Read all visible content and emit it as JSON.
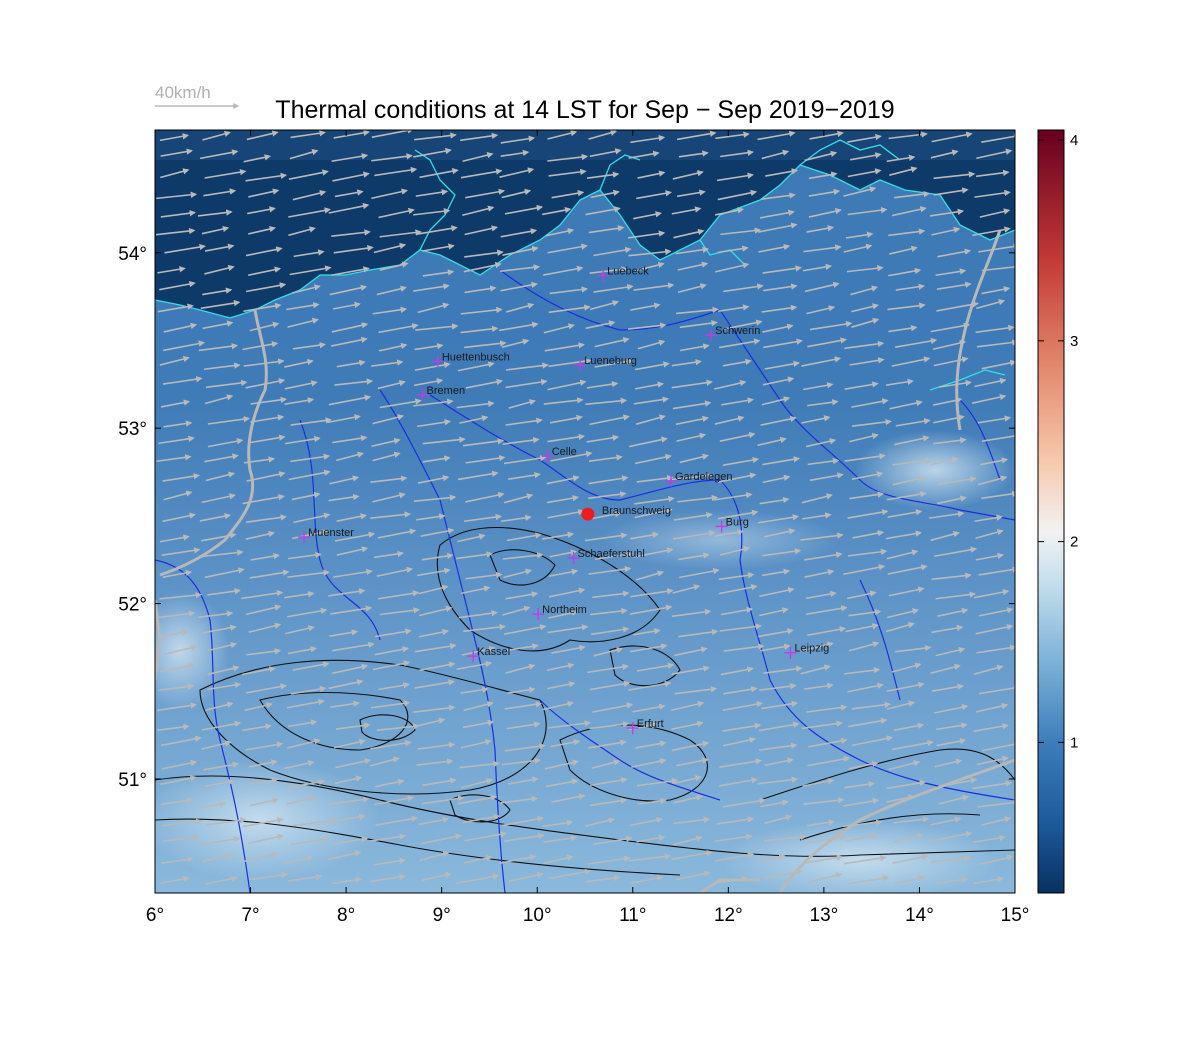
{
  "title": "Thermal conditions at 14 LST for Sep − Sep  2019−2019",
  "wind_legend": {
    "label": "40km/h",
    "color": "#b0b0b0"
  },
  "map": {
    "lon_range": [
      6,
      15
    ],
    "lat_range": [
      50.35,
      54.7
    ],
    "x_ticks": [
      "6°",
      "7°",
      "8°",
      "9°",
      "10°",
      "11°",
      "12°",
      "13°",
      "14°",
      "15°"
    ],
    "x_tick_values": [
      6,
      7,
      8,
      9,
      10,
      11,
      12,
      13,
      14,
      15
    ],
    "y_ticks": [
      "51°",
      "52°",
      "53°",
      "54°"
    ],
    "y_tick_values": [
      51,
      52,
      53,
      54
    ],
    "colors": {
      "sea": "#0e3a6a",
      "coast": "#30e0e8",
      "rivers": "#1a2fe0",
      "border": "#b8b8b8",
      "relief": "#101010",
      "station_marker": "#c838e8",
      "main_site": "#ee1c1c",
      "wind_arrows": "#b9b9b9"
    }
  },
  "cities": [
    {
      "name": "Luebeck",
      "lon": 10.69,
      "lat": 53.87
    },
    {
      "name": "Schwerin",
      "lon": 11.82,
      "lat": 53.53
    },
    {
      "name": "Huettenbusch",
      "lon": 8.96,
      "lat": 53.38
    },
    {
      "name": "Lueneburg",
      "lon": 10.45,
      "lat": 53.36
    },
    {
      "name": "Bremen",
      "lon": 8.8,
      "lat": 53.19
    },
    {
      "name": "Celle",
      "lon": 10.11,
      "lat": 52.84
    },
    {
      "name": "Gardelegen",
      "lon": 11.4,
      "lat": 52.7
    },
    {
      "name": "Braunschweig",
      "lon": 10.53,
      "lat": 52.51,
      "main": true
    },
    {
      "name": "Burg",
      "lon": 11.93,
      "lat": 52.44
    },
    {
      "name": "Muenster",
      "lon": 7.56,
      "lat": 52.38
    },
    {
      "name": "Schaeferstuhl",
      "lon": 10.38,
      "lat": 52.26
    },
    {
      "name": "Northeim",
      "lon": 10.01,
      "lat": 51.94
    },
    {
      "name": "Kassel",
      "lon": 9.33,
      "lat": 51.7
    },
    {
      "name": "Leipzig",
      "lon": 12.65,
      "lat": 51.72
    },
    {
      "name": "Erfurt",
      "lon": 11.0,
      "lat": 51.29
    }
  ],
  "colorbar": {
    "range": [
      0.25,
      4.05
    ],
    "ticks": [
      "1",
      "2",
      "3",
      "4"
    ],
    "tick_values": [
      1,
      2,
      3,
      4
    ],
    "stops": [
      {
        "v": 0.25,
        "c": "#083162"
      },
      {
        "v": 0.6,
        "c": "#1d5a9b"
      },
      {
        "v": 1.0,
        "c": "#3d7dbb"
      },
      {
        "v": 1.4,
        "c": "#7cb1d8"
      },
      {
        "v": 1.8,
        "c": "#c6dfee"
      },
      {
        "v": 2.05,
        "c": "#f2f2f2"
      },
      {
        "v": 2.4,
        "c": "#f7c9ad"
      },
      {
        "v": 2.9,
        "c": "#e1846a"
      },
      {
        "v": 3.4,
        "c": "#c33a37"
      },
      {
        "v": 4.05,
        "c": "#67001f"
      }
    ]
  }
}
